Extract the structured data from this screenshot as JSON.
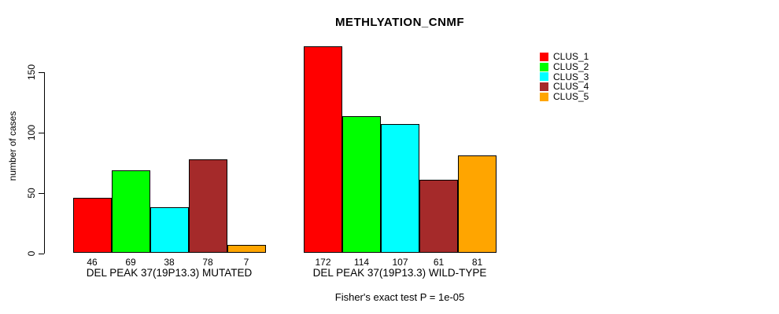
{
  "chart_data": {
    "type": "bar",
    "title": "METHLYATION_CNMF",
    "ylabel": "number of cases",
    "annotation": "Fisher's exact test P = 1e-05",
    "ylim": [
      0,
      150
    ],
    "yticks": [
      0,
      50,
      100,
      150
    ],
    "grid": false,
    "legend_position": "right",
    "legend": [
      "CLUS_1",
      "CLUS_2",
      "CLUS_3",
      "CLUS_4",
      "CLUS_5"
    ],
    "colors": [
      "#ff0000",
      "#00ff00",
      "#00ffff",
      "#a52a2a",
      "#ffa500"
    ],
    "groups": [
      {
        "label": "DEL PEAK 37(19P13.3) MUTATED",
        "values": [
          46,
          69,
          38,
          78,
          7
        ]
      },
      {
        "label": "DEL PEAK 37(19P13.3) WILD-TYPE",
        "values": [
          172,
          114,
          107,
          61,
          81
        ]
      }
    ]
  }
}
